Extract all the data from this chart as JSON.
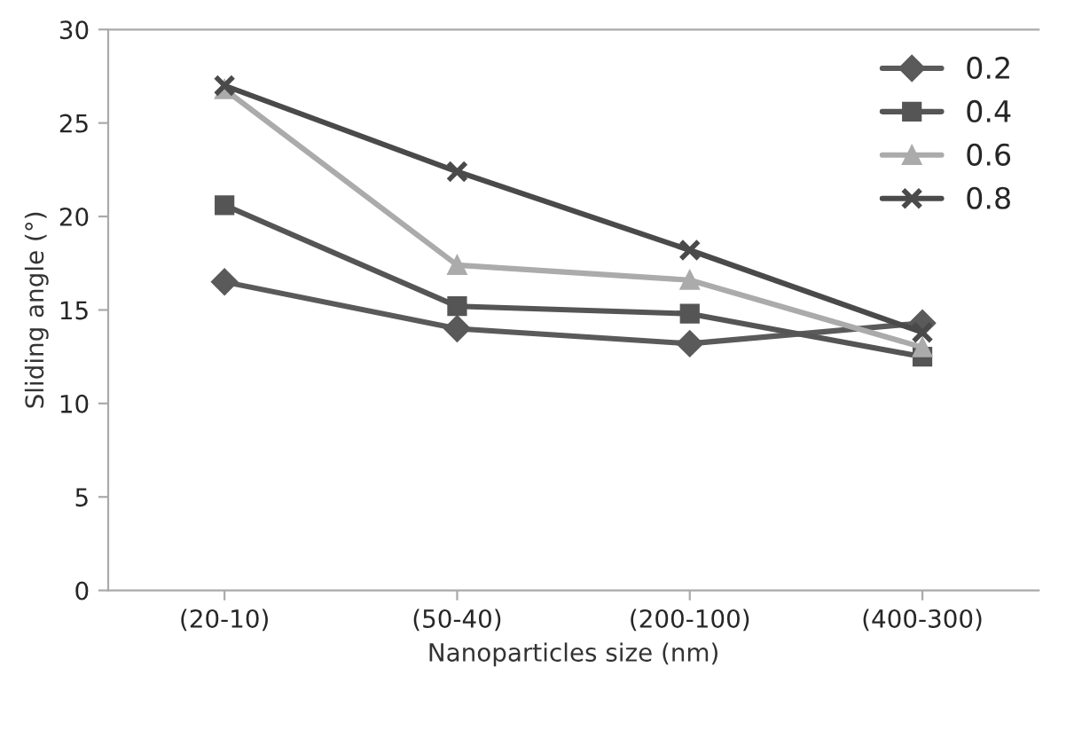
{
  "chart_data": {
    "type": "line",
    "xlabel": "Nanoparticles size (nm)",
    "ylabel": "Sliding angle (°)",
    "categories": [
      "(20-10)",
      "(50-40)",
      "(200-100)",
      "(400-300)"
    ],
    "series": [
      {
        "name": "0.2",
        "color": "#5a5a5a",
        "marker": "diamond",
        "values": [
          16.5,
          14,
          13.2,
          14.3
        ]
      },
      {
        "name": "0.4",
        "color": "#555555",
        "marker": "square",
        "values": [
          20.6,
          15.2,
          14.8,
          12.5
        ]
      },
      {
        "name": "0.6",
        "color": "#ababab",
        "marker": "triangle",
        "values": [
          26.8,
          17.4,
          16.6,
          13
        ]
      },
      {
        "name": "0.8",
        "color": "#4a4a4a",
        "marker": "cross",
        "values": [
          27,
          22.4,
          18.2,
          13.8
        ]
      }
    ],
    "ylim": [
      0,
      30
    ],
    "yticks": [
      0,
      5,
      10,
      15,
      20,
      25,
      30
    ],
    "legend": "top right",
    "line_style": "solid"
  }
}
